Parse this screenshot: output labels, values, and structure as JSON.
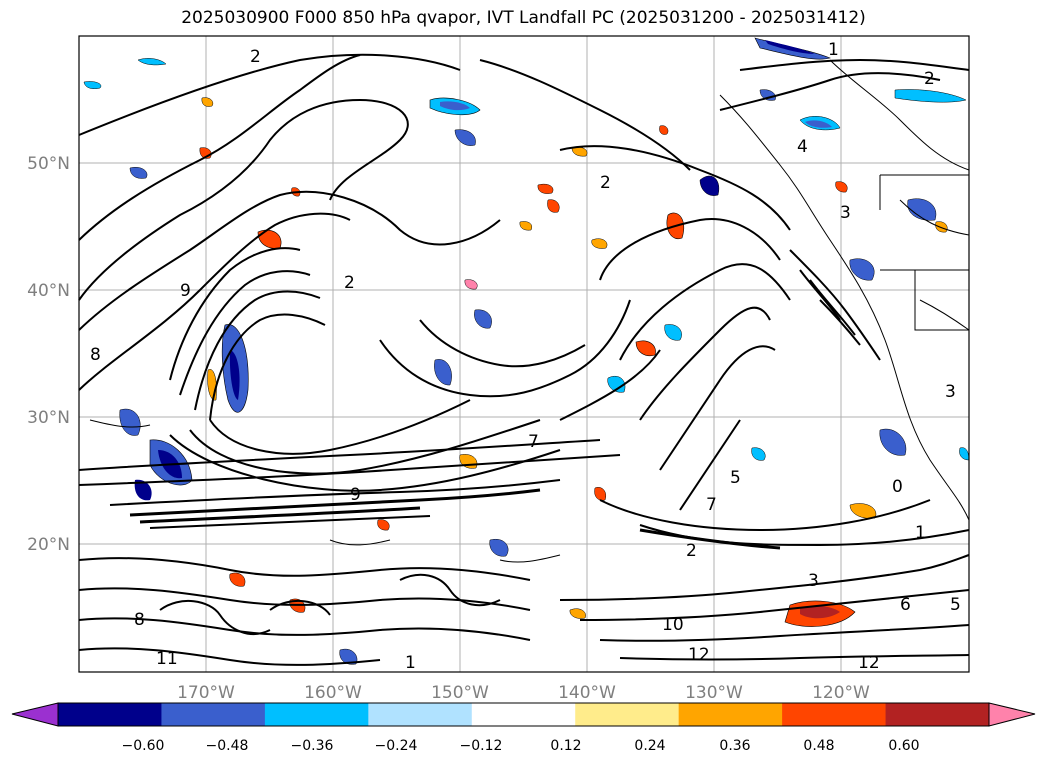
{
  "title": "2025030900 F000 850 hPa qvapor, IVT Landfall PC (2025031200 - 2025031412)",
  "map": {
    "lon_range": [
      -180,
      -110
    ],
    "lat_range": [
      10,
      60
    ],
    "lon_ticks": [
      "170°W",
      "160°W",
      "150°W",
      "140°W",
      "130°W",
      "120°W"
    ],
    "lat_ticks": [
      "50°N",
      "40°N",
      "30°N",
      "20°N"
    ],
    "grid": true,
    "contour_labels": [
      "1",
      "2",
      "2",
      "2",
      "4",
      "3",
      "3",
      "9",
      "8",
      "2",
      "7",
      "5",
      "9",
      "8",
      "7",
      "1",
      "2",
      "3",
      "6",
      "10",
      "12",
      "11",
      "0",
      "1",
      "5",
      "12"
    ]
  },
  "colorbar": {
    "tick_labels": [
      "−0.60",
      "−0.48",
      "−0.36",
      "−0.24",
      "−0.12",
      "0.12",
      "0.24",
      "0.36",
      "0.48",
      "0.60"
    ],
    "colors": [
      "#9b30d0",
      "#00008b",
      "#3a5fcd",
      "#00bfff",
      "#b0e2ff",
      "#ffffff",
      "#ffec8b",
      "#ffa500",
      "#ff4500",
      "#b22222",
      "#ff82ab"
    ],
    "extend": "both"
  }
}
